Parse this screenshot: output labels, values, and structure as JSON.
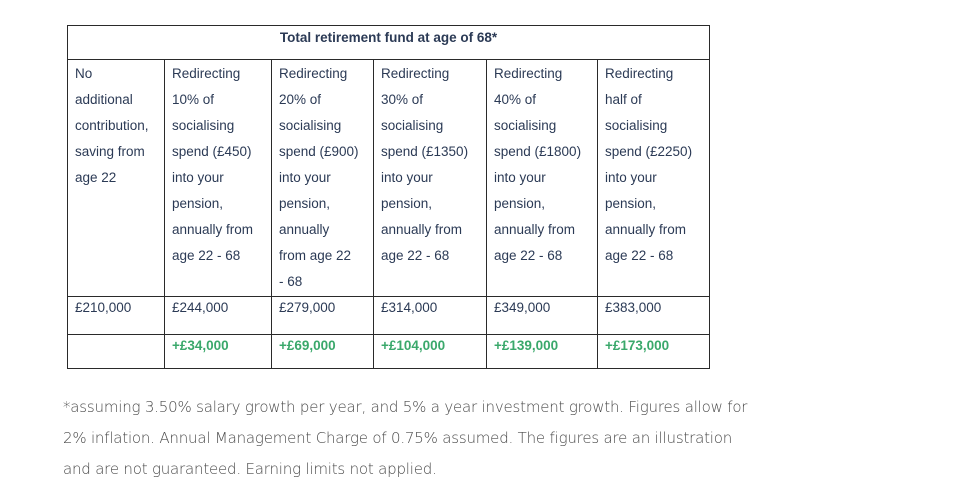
{
  "table": {
    "title": "Total retirement fund at age of 68*",
    "columns": [
      {
        "lines": [
          "No",
          "additional",
          "contribution,",
          "saving from",
          "age 22"
        ],
        "total": "£210,000",
        "gain": ""
      },
      {
        "lines": [
          "Redirecting",
          "10% of",
          "socialising",
          "spend (£450)",
          "into your",
          "pension,",
          "annually from",
          "age 22 - 68"
        ],
        "total": "£244,000",
        "gain": "+£34,000"
      },
      {
        "lines": [
          "Redirecting",
          "20% of",
          "socialising",
          "spend (£900)",
          "into your",
          "pension,",
          "annually",
          "from age 22",
          "- 68"
        ],
        "total": "£279,000",
        "gain": "+£69,000"
      },
      {
        "lines": [
          "Redirecting",
          "30% of",
          "socialising",
          "spend (£1350)",
          "into your",
          "pension,",
          "annually from",
          "age 22 - 68"
        ],
        "total": "£314,000",
        "gain": "+£104,000"
      },
      {
        "lines": [
          "Redirecting",
          "40% of",
          "socialising",
          "spend (£1800)",
          "into your",
          "pension,",
          "annually from",
          "age 22 - 68"
        ],
        "total": "£349,000",
        "gain": "+£139,000"
      },
      {
        "lines": [
          "Redirecting",
          "half of",
          "socialising",
          "spend (£2250)",
          "into your",
          "pension,",
          "annually from",
          "age 22 - 68"
        ],
        "total": "£383,000",
        "gain": "+£173,000"
      }
    ],
    "colors": {
      "text": "#2b3a55",
      "gain": "#3aa86b",
      "border": "#2a2a2a"
    }
  },
  "footnote": {
    "lines": [
      "*assuming 3.50% salary growth per year, and 5% a year investment growth. Figures allow for",
      "2% inflation. Annual Management Charge of 0.75% assumed. The figures are an illustration",
      "and are not guaranteed. Earning limits not applied."
    ]
  }
}
